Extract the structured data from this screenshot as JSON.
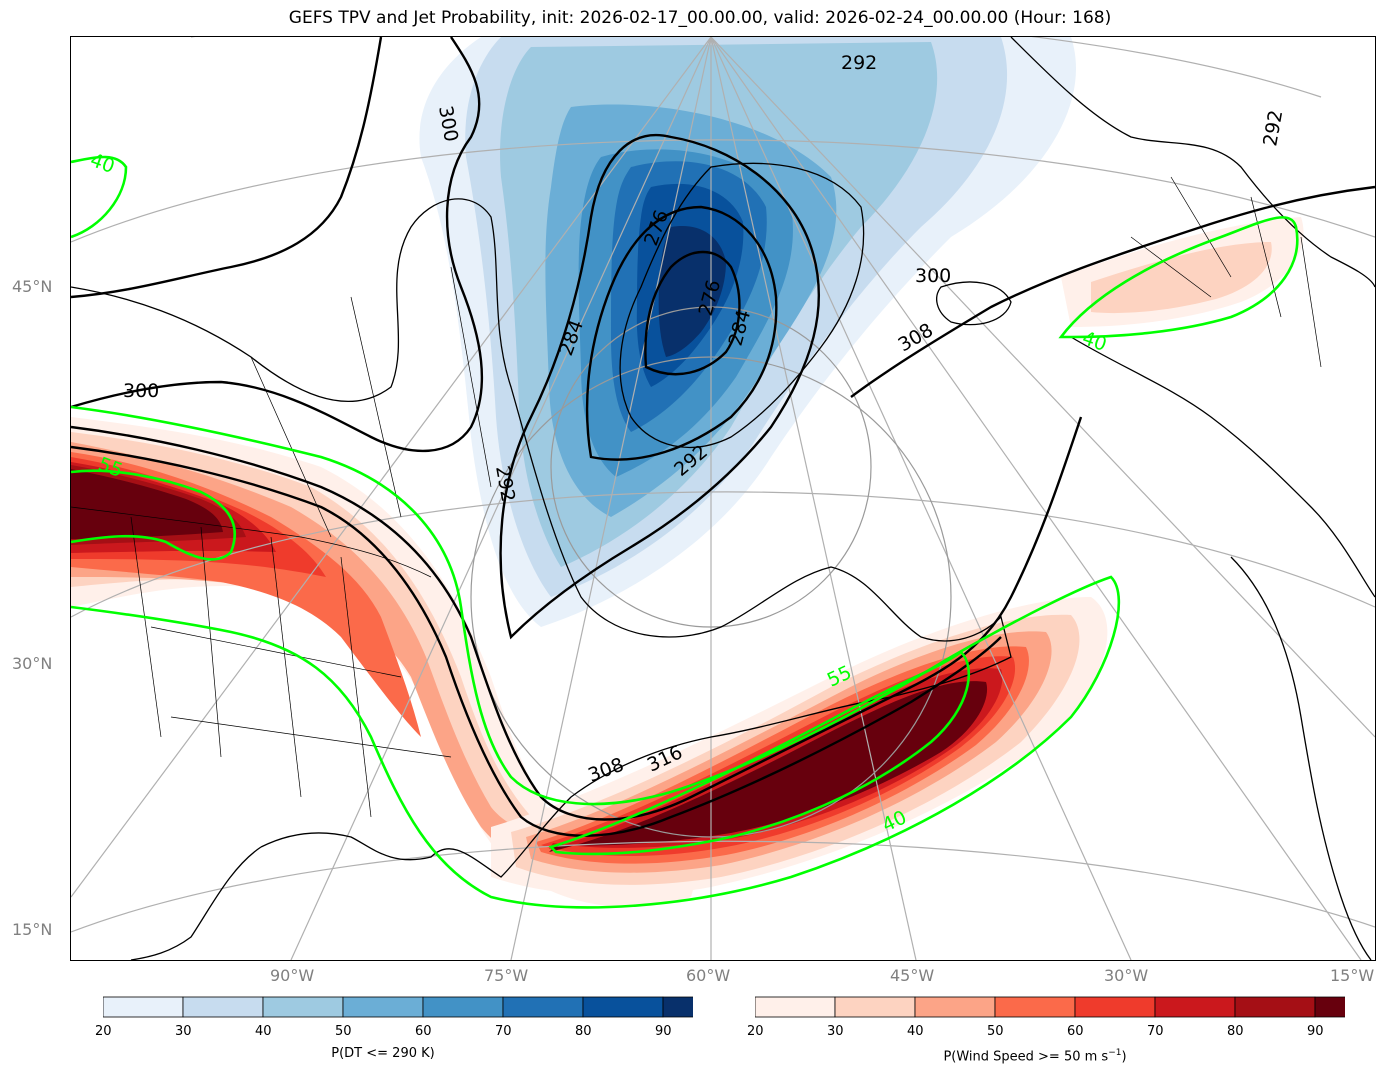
{
  "title": "GEFS TPV and Jet Probability, init: 2026-02-17_00.00.00, valid: 2026-02-24_00.00.00 (Hour: 168)",
  "lat_labels": [
    "45°N",
    "30°N",
    "15°N"
  ],
  "lon_labels": [
    "90°W",
    "75°W",
    "60°W",
    "45°W",
    "30°W",
    "15°W"
  ],
  "contour_labels": {
    "theta": [
      "300",
      "300",
      "300",
      "308",
      "308",
      "316",
      "292",
      "292",
      "292",
      "276",
      "284",
      "284",
      "276",
      "292"
    ],
    "jet": [
      "40",
      "55",
      "40",
      "55",
      "40"
    ]
  },
  "colorbars": {
    "dt": {
      "label": "P(DT <= 290 K)",
      "ticks": [
        "20",
        "30",
        "40",
        "50",
        "60",
        "70",
        "80",
        "90"
      ],
      "colors": [
        "#e8f1fa",
        "#c7dcef",
        "#9ecae1",
        "#6baed6",
        "#4292c6",
        "#2171b5",
        "#08519c",
        "#08306b"
      ]
    },
    "wind": {
      "label": "P(Wind Speed >= 50 m s",
      "label_sup": "−1",
      "label_end": ")",
      "ticks": [
        "20",
        "30",
        "40",
        "50",
        "60",
        "70",
        "80",
        "90"
      ],
      "colors": [
        "#fff0ea",
        "#fdd3c1",
        "#fca487",
        "#fb6a4a",
        "#ef3b2c",
        "#cb181d",
        "#a50f15",
        "#67000d"
      ]
    }
  },
  "colors": {
    "jet_contour": "#00ff00",
    "theta_contour": "#000000",
    "grid": "#b0b0b0",
    "coast": "#000000"
  }
}
